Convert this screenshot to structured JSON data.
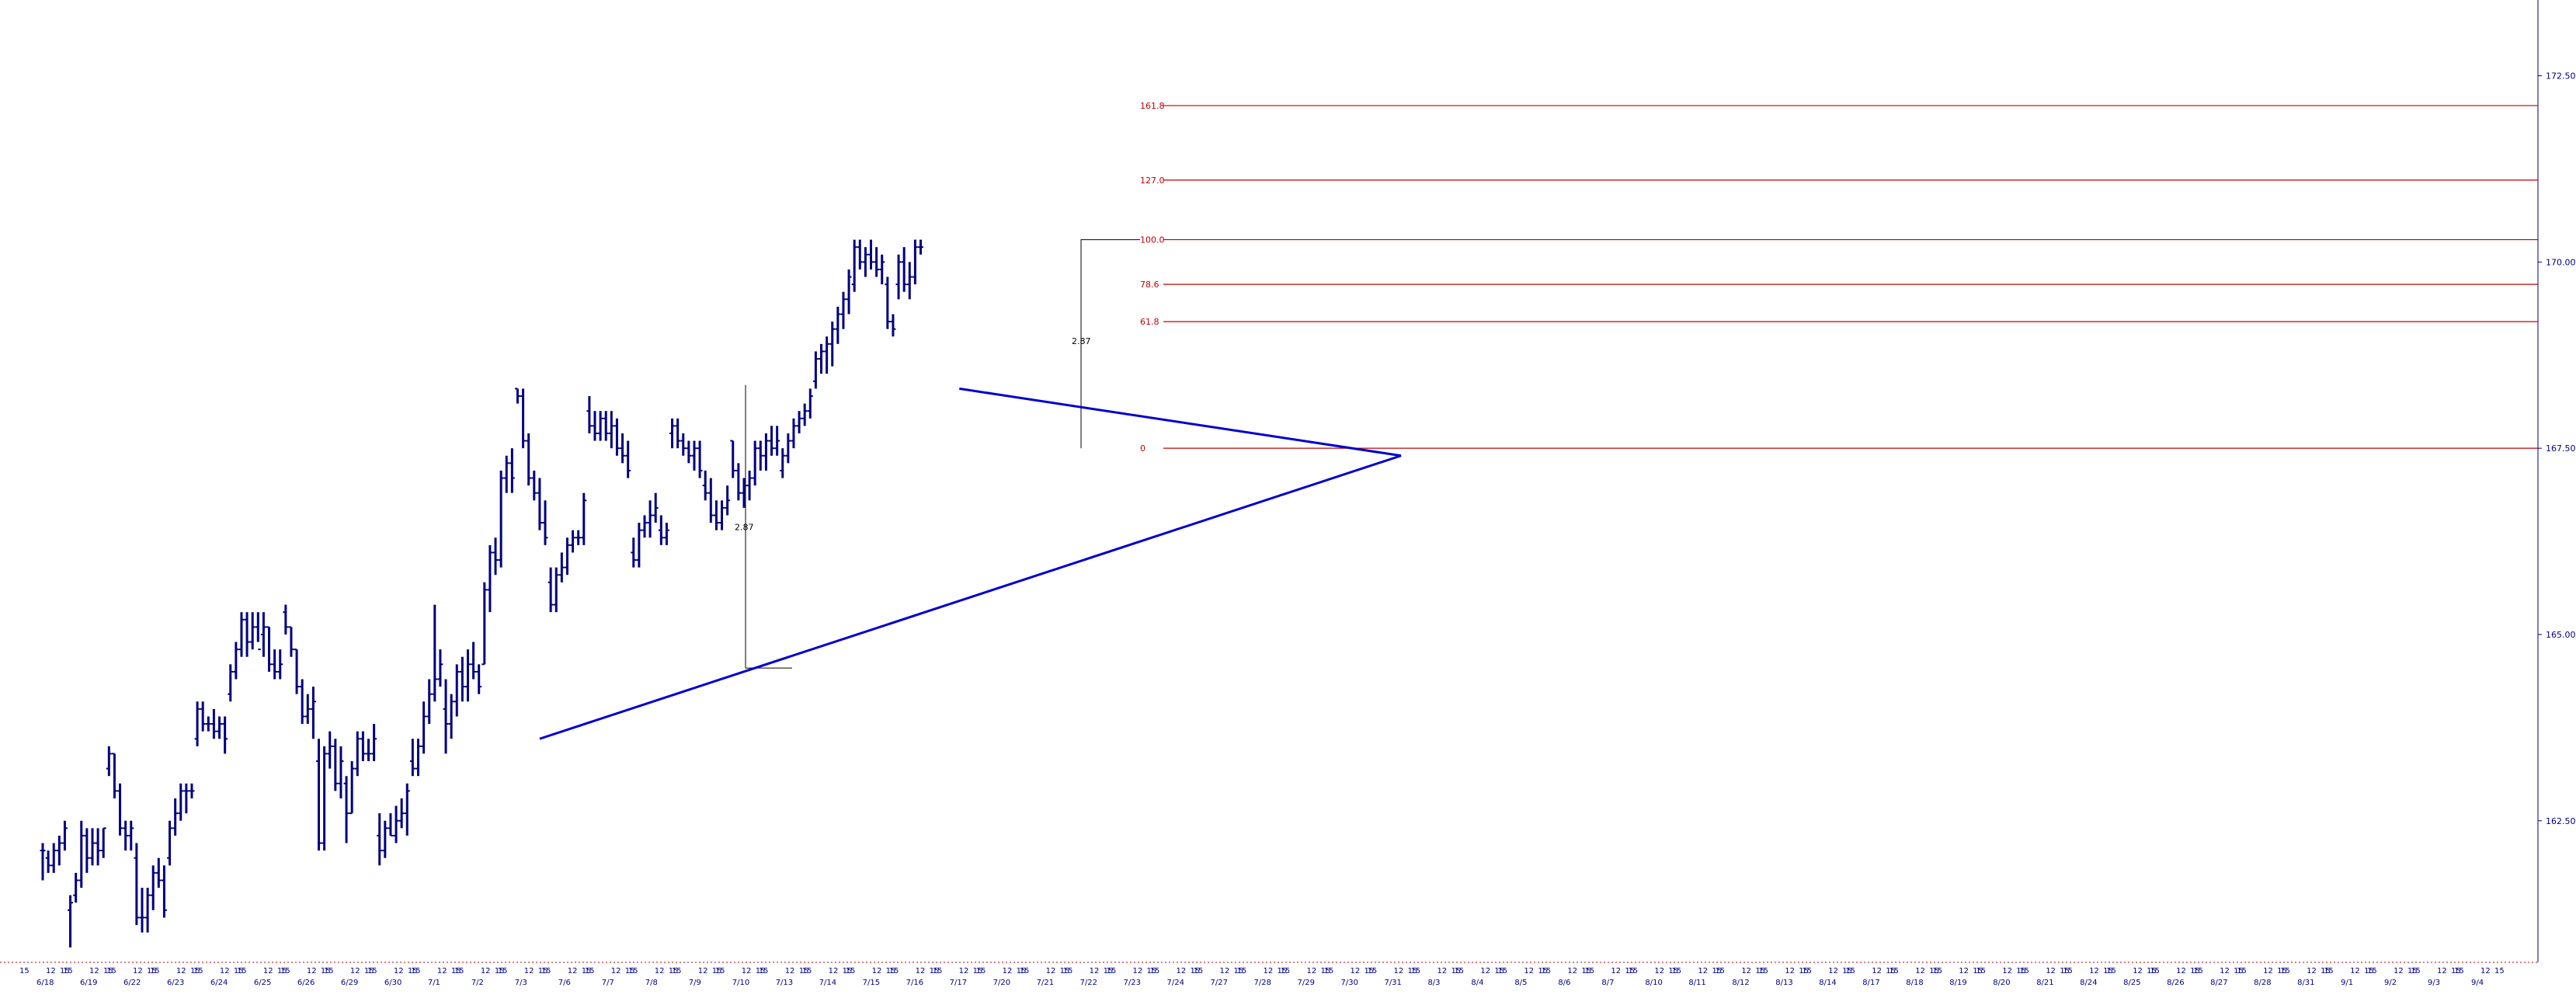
{
  "chart_data": {
    "type": "bar",
    "style": "ohlc",
    "y_axis": {
      "position": "right",
      "ylim": [
        160.6,
        173.1
      ],
      "ticks": [
        "162.50",
        "165.00",
        "167.50",
        "170.00",
        "172.50"
      ]
    },
    "x_axis": {
      "dates": [
        "6/18",
        "6/19",
        "6/22",
        "6/23",
        "6/24",
        "6/25",
        "6/26",
        "6/29",
        "6/30",
        "7/1",
        "7/2",
        "7/3",
        "7/6",
        "7/7",
        "7/8",
        "7/9",
        "7/10",
        "7/13",
        "7/14",
        "7/15",
        "7/16",
        "7/17",
        "7/20",
        "7/21",
        "7/22",
        "7/23",
        "7/24",
        "7/27",
        "7/28",
        "7/29",
        "7/30",
        "7/31",
        "8/3",
        "8/4",
        "8/5",
        "8/6",
        "8/7",
        "8/10",
        "8/11",
        "8/12",
        "8/13",
        "8/14",
        "8/17",
        "8/18",
        "8/19",
        "8/20",
        "8/21",
        "8/24",
        "8/25",
        "8/26",
        "8/27",
        "8/28",
        "8/31",
        "9/1",
        "9/2",
        "9/3",
        "9/4"
      ],
      "intraday_labels": [
        "15",
        "12",
        "15"
      ]
    },
    "series": [
      {
        "values": [
          [
            162.1,
            161.7,
            162.2,
            162.1
          ],
          [
            162.0,
            161.8,
            162.1,
            161.9
          ],
          [
            161.9,
            161.8,
            162.2,
            162.1
          ],
          [
            162.1,
            161.9,
            162.3,
            162.2
          ],
          [
            162.2,
            162.1,
            162.5,
            162.4
          ],
          [
            161.3,
            160.8,
            161.5,
            161.4
          ],
          [
            161.5,
            161.4,
            161.8,
            161.7
          ],
          [
            161.7,
            161.6,
            162.5,
            162.3
          ],
          [
            162.3,
            161.8,
            162.4,
            162.0
          ],
          [
            162.0,
            161.9,
            162.4,
            162.2
          ],
          [
            162.2,
            161.9,
            162.4,
            162.1
          ],
          [
            162.1,
            162.0,
            162.4,
            162.4
          ],
          [
            163.2,
            163.1,
            163.5,
            163.4
          ],
          [
            163.4,
            162.8,
            163.4,
            162.9
          ],
          [
            162.9,
            162.3,
            163.0,
            162.4
          ],
          [
            162.4,
            162.1,
            162.5,
            162.3
          ],
          [
            162.3,
            162.1,
            162.5,
            162.4
          ],
          [
            162.0,
            161.1,
            162.2,
            161.2
          ],
          [
            161.2,
            161.0,
            161.6,
            161.2
          ],
          [
            161.2,
            161.0,
            161.6,
            161.5
          ],
          [
            161.5,
            161.3,
            161.9,
            161.8
          ],
          [
            161.8,
            161.6,
            162.0,
            161.7
          ],
          [
            161.7,
            161.2,
            161.9,
            161.3
          ],
          [
            162.0,
            161.9,
            162.5,
            162.4
          ],
          [
            162.4,
            162.3,
            162.8,
            162.6
          ],
          [
            162.6,
            162.5,
            163.0,
            162.9
          ],
          [
            162.9,
            162.6,
            163.0,
            162.9
          ],
          [
            162.9,
            162.8,
            163.0,
            162.9
          ],
          [
            163.6,
            163.5,
            164.1,
            164.0
          ],
          [
            164.0,
            163.7,
            164.1,
            163.8
          ],
          [
            163.8,
            163.7,
            163.9,
            163.8
          ],
          [
            163.8,
            163.6,
            164.0,
            163.7
          ],
          [
            163.7,
            163.6,
            163.9,
            163.8
          ],
          [
            163.8,
            163.4,
            163.9,
            163.6
          ],
          [
            164.2,
            164.1,
            164.6,
            164.5
          ],
          [
            164.5,
            164.4,
            164.9,
            164.8
          ],
          [
            164.8,
            164.7,
            165.3,
            165.2
          ],
          [
            165.2,
            164.7,
            165.3,
            164.9
          ],
          [
            164.9,
            164.8,
            165.3,
            165.1
          ],
          [
            165.1,
            164.9,
            165.3,
            164.8
          ],
          [
            165.0,
            164.7,
            165.3,
            165.1
          ],
          [
            165.1,
            164.5,
            165.1,
            164.6
          ],
          [
            164.6,
            164.4,
            164.8,
            164.5
          ],
          [
            164.5,
            164.4,
            164.8,
            164.6
          ],
          [
            165.3,
            165.0,
            165.4,
            165.1
          ],
          [
            165.1,
            164.7,
            165.1,
            164.8
          ],
          [
            164.8,
            164.2,
            164.8,
            164.3
          ],
          [
            164.3,
            163.8,
            164.4,
            163.9
          ],
          [
            163.9,
            163.8,
            164.2,
            164.0
          ],
          [
            164.0,
            163.6,
            164.3,
            164.1
          ],
          [
            163.3,
            162.1,
            163.6,
            162.2
          ],
          [
            162.2,
            162.1,
            163.5,
            163.4
          ],
          [
            163.4,
            163.2,
            163.7,
            163.5
          ],
          [
            163.5,
            162.9,
            163.6,
            163.0
          ],
          [
            163.0,
            162.8,
            163.5,
            163.3
          ],
          [
            163.0,
            162.2,
            163.1,
            162.6
          ],
          [
            162.6,
            162.6,
            163.3,
            163.2
          ],
          [
            163.2,
            163.1,
            163.7,
            163.6
          ],
          [
            163.6,
            163.3,
            163.7,
            163.4
          ],
          [
            163.4,
            163.3,
            163.6,
            163.4
          ],
          [
            163.4,
            163.3,
            163.8,
            163.6
          ],
          [
            162.3,
            161.9,
            162.6,
            162.1
          ],
          [
            162.1,
            162.0,
            162.5,
            162.4
          ],
          [
            162.4,
            162.3,
            162.6,
            162.3
          ],
          [
            162.3,
            162.2,
            162.7,
            162.5
          ],
          [
            162.5,
            162.4,
            162.8,
            162.6
          ],
          [
            162.6,
            162.3,
            163.0,
            162.9
          ],
          [
            163.3,
            163.1,
            163.6,
            163.2
          ],
          [
            163.2,
            163.1,
            163.6,
            163.5
          ],
          [
            163.5,
            163.4,
            164.1,
            163.9
          ],
          [
            163.9,
            163.8,
            164.4,
            164.2
          ],
          [
            164.2,
            164.1,
            165.4,
            164.4
          ],
          [
            164.4,
            164.3,
            164.8,
            164.6
          ],
          [
            164.0,
            163.4,
            164.4,
            163.8
          ],
          [
            163.8,
            163.6,
            164.2,
            164.1
          ],
          [
            164.1,
            163.9,
            164.6,
            164.5
          ],
          [
            164.5,
            164.1,
            164.7,
            164.3
          ],
          [
            164.3,
            164.1,
            164.8,
            164.6
          ],
          [
            164.6,
            164.4,
            164.9,
            164.5
          ],
          [
            164.5,
            164.2,
            164.6,
            164.3
          ],
          [
            164.6,
            164.6,
            165.7,
            165.6
          ],
          [
            165.6,
            165.3,
            166.2,
            166.1
          ],
          [
            166.1,
            165.8,
            166.3,
            166.0
          ],
          [
            166.0,
            165.9,
            167.2,
            167.1
          ],
          [
            167.1,
            166.9,
            167.4,
            167.3
          ],
          [
            167.3,
            166.9,
            167.5,
            167.1
          ],
          [
            168.3,
            168.1,
            168.3,
            168.2
          ],
          [
            168.2,
            167.5,
            168.3,
            167.6
          ],
          [
            167.6,
            167.0,
            167.7,
            167.1
          ],
          [
            167.1,
            166.8,
            167.2,
            166.9
          ],
          [
            166.9,
            166.4,
            167.1,
            166.5
          ],
          [
            166.5,
            166.2,
            166.8,
            166.3
          ],
          [
            165.7,
            165.3,
            165.9,
            165.4
          ],
          [
            165.4,
            165.3,
            165.9,
            165.8
          ],
          [
            165.8,
            165.7,
            166.1,
            165.9
          ],
          [
            165.9,
            165.8,
            166.3,
            166.2
          ],
          [
            166.2,
            166.1,
            166.4,
            166.3
          ],
          [
            166.3,
            166.2,
            166.4,
            166.3
          ],
          [
            166.3,
            166.2,
            166.9,
            166.8
          ],
          [
            168.0,
            167.7,
            168.2,
            167.8
          ],
          [
            167.8,
            167.6,
            168.0,
            167.7
          ],
          [
            167.7,
            167.6,
            168.0,
            167.9
          ],
          [
            167.9,
            167.6,
            168.0,
            167.7
          ],
          [
            167.7,
            167.5,
            168.0,
            167.8
          ],
          [
            167.8,
            167.4,
            167.9,
            167.5
          ],
          [
            167.5,
            167.3,
            167.7,
            167.4
          ],
          [
            167.4,
            167.1,
            167.6,
            167.2
          ],
          [
            166.1,
            165.9,
            166.3,
            166.0
          ],
          [
            166.0,
            165.9,
            166.5,
            166.4
          ],
          [
            166.4,
            166.3,
            166.6,
            166.5
          ],
          [
            166.5,
            166.3,
            166.8,
            166.6
          ],
          [
            166.6,
            166.5,
            166.9,
            166.7
          ],
          [
            166.4,
            166.2,
            166.6,
            166.3
          ],
          [
            166.3,
            166.2,
            166.5,
            166.4
          ],
          [
            167.7,
            167.5,
            167.9,
            167.8
          ],
          [
            167.8,
            167.5,
            167.9,
            167.6
          ],
          [
            167.6,
            167.4,
            167.7,
            167.5
          ],
          [
            167.5,
            167.3,
            167.6,
            167.4
          ],
          [
            167.4,
            167.2,
            167.6,
            167.5
          ],
          [
            167.5,
            167.1,
            167.6,
            167.2
          ],
          [
            167.0,
            166.8,
            167.2,
            166.9
          ],
          [
            166.9,
            166.5,
            167.1,
            166.6
          ],
          [
            166.6,
            166.4,
            166.8,
            166.5
          ],
          [
            166.5,
            166.4,
            166.8,
            166.7
          ],
          [
            166.7,
            166.6,
            167.0,
            166.8
          ],
          [
            167.6,
            167.1,
            167.6,
            167.2
          ],
          [
            167.2,
            166.8,
            167.3,
            166.9
          ],
          [
            166.9,
            166.7,
            167.1,
            167.0
          ],
          [
            167.0,
            166.8,
            167.2,
            167.1
          ],
          [
            167.1,
            167.0,
            167.6,
            167.5
          ],
          [
            167.5,
            167.2,
            167.6,
            167.4
          ],
          [
            167.4,
            167.2,
            167.7,
            167.6
          ],
          [
            167.6,
            167.4,
            167.8,
            167.5
          ],
          [
            167.5,
            167.4,
            167.8,
            167.6
          ],
          [
            167.2,
            167.1,
            167.5,
            167.4
          ],
          [
            167.4,
            167.3,
            167.7,
            167.6
          ],
          [
            167.6,
            167.5,
            167.9,
            167.8
          ],
          [
            167.8,
            167.7,
            168.0,
            167.9
          ],
          [
            167.9,
            167.8,
            168.1,
            168.0
          ],
          [
            168.0,
            167.9,
            168.3,
            168.2
          ],
          [
            168.4,
            168.3,
            168.8,
            168.7
          ],
          [
            168.7,
            168.5,
            168.9,
            168.8
          ],
          [
            168.8,
            168.5,
            169.0,
            168.9
          ],
          [
            168.9,
            168.6,
            169.2,
            169.1
          ],
          [
            169.1,
            168.9,
            169.4,
            169.3
          ],
          [
            169.3,
            169.1,
            169.6,
            169.5
          ],
          [
            169.5,
            169.3,
            169.9,
            169.8
          ],
          [
            169.7,
            169.6,
            170.3,
            170.2
          ],
          [
            170.2,
            169.9,
            170.3,
            170.0
          ],
          [
            170.0,
            169.8,
            170.2,
            170.1
          ],
          [
            170.1,
            169.9,
            170.3,
            170.0
          ],
          [
            170.0,
            169.8,
            170.2,
            169.9
          ],
          [
            169.9,
            169.7,
            170.1,
            170.0
          ],
          [
            169.7,
            169.1,
            169.8,
            169.2
          ],
          [
            169.2,
            169.0,
            169.3,
            169.1
          ],
          [
            169.7,
            169.5,
            170.1,
            170.0
          ],
          [
            170.0,
            169.6,
            170.2,
            169.7
          ],
          [
            169.7,
            169.5,
            170.0,
            169.8
          ],
          [
            169.8,
            169.7,
            170.3,
            170.2
          ],
          [
            170.2,
            170.1,
            170.3,
            170.2
          ]
        ]
      }
    ],
    "triangle": {
      "upper_line": [
        [
          166,
          168.3
        ],
        [
          246,
          167.4
        ]
      ],
      "lower_line": [
        [
          90,
          163.6
        ],
        [
          246,
          167.4
        ]
      ]
    },
    "measured_move": {
      "label": "2.87"
    },
    "fib_levels": [
      {
        "label": "161.8",
        "value": 172.1
      },
      {
        "label": "127.0",
        "value": 171.1
      },
      {
        "label": "100.0",
        "value": 170.3
      },
      {
        "label": "78.6",
        "value": 169.7
      },
      {
        "label": "61.8",
        "value": 169.2
      },
      {
        "label": "0",
        "value": 167.5
      }
    ],
    "colors": {
      "bars": "#000080",
      "trendline": "#0000cc",
      "fib": "#c00000",
      "measure": "#000000"
    }
  }
}
